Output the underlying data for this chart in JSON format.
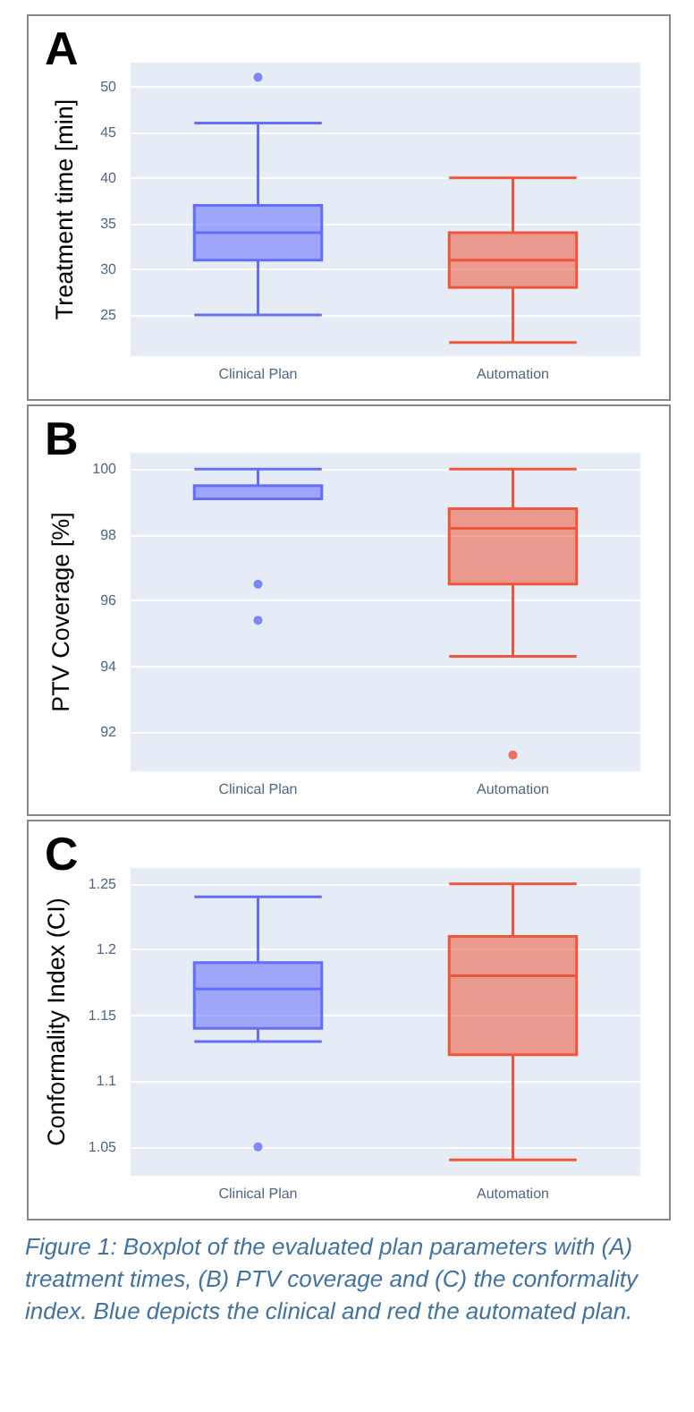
{
  "chart_data": [
    {
      "type": "box",
      "title": "A",
      "ylabel": "Treatment time [min]",
      "categories": [
        "Clinical Plan",
        "Automation"
      ],
      "colors": [
        "#636efa",
        "#ef553b"
      ],
      "ylim": [
        20.5,
        52.6
      ],
      "yticks": [
        25,
        30,
        35,
        40,
        45,
        50
      ],
      "grid": "y",
      "boxes": [
        {
          "low": 25,
          "q1": 31,
          "median": 34,
          "q3": 37,
          "high": 46,
          "outliers": [
            51
          ]
        },
        {
          "low": 22,
          "q1": 28,
          "median": 31,
          "q3": 34,
          "high": 40
        }
      ]
    },
    {
      "type": "box",
      "title": "B",
      "ylabel": "PTV Coverage [%]",
      "categories": [
        "Clinical Plan",
        "Automation"
      ],
      "colors": [
        "#636efa",
        "#ef553b"
      ],
      "ylim": [
        90.8,
        100.5
      ],
      "yticks": [
        92,
        94,
        96,
        98,
        100
      ],
      "grid": "y",
      "boxes": [
        {
          "low": 99.1,
          "q1": 99.1,
          "median": 99.1,
          "q3": 99.5,
          "high": 100,
          "outliers": [
            96.5,
            95.4
          ]
        },
        {
          "low": 94.3,
          "q1": 96.5,
          "median": 98.2,
          "q3": 98.8,
          "high": 100,
          "outliers": [
            91.3
          ]
        }
      ]
    },
    {
      "type": "box",
      "title": "C",
      "ylabel": "Conformality Index (CI)",
      "categories": [
        "Clinical Plan",
        "Automation"
      ],
      "colors": [
        "#636efa",
        "#ef553b"
      ],
      "ylim": [
        1.028,
        1.262
      ],
      "yticks": [
        1.05,
        1.1,
        1.15,
        1.2,
        1.25
      ],
      "grid": "y",
      "boxes": [
        {
          "low": 1.13,
          "q1": 1.14,
          "median": 1.17,
          "q3": 1.19,
          "high": 1.24,
          "outliers": [
            1.05
          ]
        },
        {
          "low": 1.04,
          "q1": 1.12,
          "median": 1.18,
          "q3": 1.21,
          "high": 1.25
        }
      ],
      "annotations": [
        "Figure 1: Boxplot of the evaluated plan parameters with (A) treatment times, (B) PTV coverage and (C) the conformality index. Blue depicts the clinical and red the automated plan."
      ]
    }
  ]
}
